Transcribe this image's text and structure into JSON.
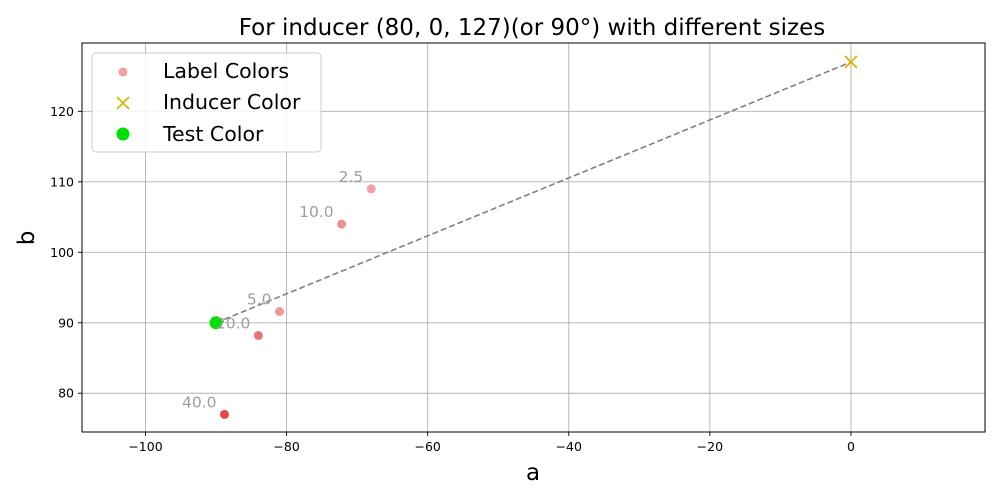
{
  "chart_data": {
    "type": "scatter",
    "title": "For inducer (80, 0, 127)(or 90°) with different sizes",
    "xlabel": "a",
    "ylabel": "b",
    "xlim": [
      -109,
      19
    ],
    "ylim": [
      74.5,
      129.7
    ],
    "xticks": [
      -100,
      -80,
      -60,
      -40,
      -20,
      0
    ],
    "yticks": [
      80,
      90,
      100,
      110,
      120
    ],
    "grid": true,
    "legend_position": "top-left",
    "legend": [
      "Label Colors",
      "Inducer Color",
      "Test Color"
    ],
    "label_points": [
      {
        "x": -68,
        "y": 109,
        "label": "2.5",
        "color": "#f0a0a0"
      },
      {
        "x": -72.2,
        "y": 104,
        "label": "10.0",
        "color": "#ef9090"
      },
      {
        "x": -81,
        "y": 91.6,
        "label": "5.0",
        "color": "#ef9999"
      },
      {
        "x": -84,
        "y": 88.2,
        "label": "20.0",
        "color": "#ea7474"
      },
      {
        "x": -88.8,
        "y": 77,
        "label": "40.0",
        "color": "#e84747"
      }
    ],
    "inducer": {
      "x": 0,
      "y": 127,
      "color": "#d4b800",
      "marker": "x"
    },
    "test": {
      "x": -90,
      "y": 90,
      "color": "#00e000",
      "marker": "circle"
    },
    "line": {
      "from": [
        -90,
        90
      ],
      "to": [
        0,
        127
      ],
      "color": "#808080",
      "style": "dashed"
    }
  }
}
